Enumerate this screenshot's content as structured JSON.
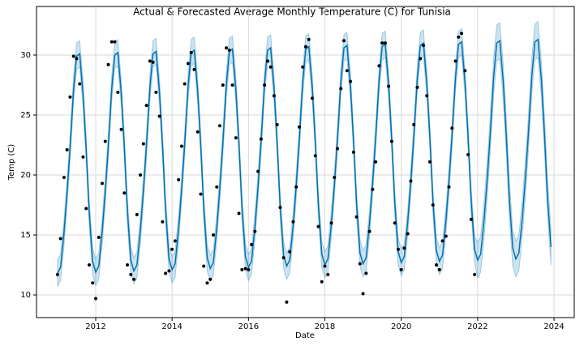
{
  "chart_data": {
    "type": "scatter",
    "title": "Actual & Forecasted Average Monthly Temperature (C) for Tunisia",
    "x_label": "Date",
    "y_label": "Temp (C)",
    "xlim": [
      2010.45,
      2024.53
    ],
    "ylim": [
      8.11,
      34.05
    ],
    "xticks": [
      2012,
      2014,
      2016,
      2018,
      2020,
      2022,
      2024
    ],
    "yticks": [
      10,
      15,
      20,
      25,
      30
    ],
    "grid": true,
    "series": [
      {
        "type": "scatter",
        "color": "#000000",
        "x": [
          2011.0,
          2011.08,
          2011.17,
          2011.25,
          2011.33,
          2011.42,
          2011.5,
          2011.58,
          2011.67,
          2011.75,
          2011.83,
          2011.92,
          2012.0,
          2012.08,
          2012.17,
          2012.25,
          2012.33,
          2012.42,
          2012.5,
          2012.58,
          2012.67,
          2012.75,
          2012.83,
          2012.92,
          2013.0,
          2013.08,
          2013.17,
          2013.25,
          2013.33,
          2013.42,
          2013.5,
          2013.58,
          2013.67,
          2013.75,
          2013.83,
          2013.92,
          2014.0,
          2014.08,
          2014.17,
          2014.25,
          2014.33,
          2014.42,
          2014.5,
          2014.58,
          2014.67,
          2014.75,
          2014.83,
          2014.92,
          2015.0,
          2015.08,
          2015.17,
          2015.25,
          2015.33,
          2015.42,
          2015.5,
          2015.58,
          2015.67,
          2015.75,
          2015.83,
          2015.92,
          2016.0,
          2016.08,
          2016.17,
          2016.25,
          2016.33,
          2016.42,
          2016.5,
          2016.58,
          2016.67,
          2016.75,
          2016.83,
          2016.92,
          2017.0,
          2017.08,
          2017.17,
          2017.25,
          2017.33,
          2017.42,
          2017.5,
          2017.58,
          2017.67,
          2017.75,
          2017.83,
          2017.92,
          2018.0,
          2018.08,
          2018.17,
          2018.25,
          2018.33,
          2018.42,
          2018.5,
          2018.58,
          2018.67,
          2018.75,
          2018.83,
          2018.92,
          2019.0,
          2019.08,
          2019.17,
          2019.25,
          2019.33,
          2019.42,
          2019.5,
          2019.58,
          2019.67,
          2019.75,
          2019.83,
          2019.92,
          2020.0,
          2020.08,
          2020.17,
          2020.25,
          2020.33,
          2020.42,
          2020.5,
          2020.58,
          2020.67,
          2020.75,
          2020.83,
          2020.92,
          2021.0,
          2021.08,
          2021.17,
          2021.25,
          2021.33,
          2021.42,
          2021.5,
          2021.58,
          2021.67,
          2021.75,
          2021.83,
          2021.92
        ],
        "values": [
          11.7,
          14.7,
          19.8,
          22.1,
          26.5,
          29.9,
          29.7,
          27.6,
          21.5,
          17.2,
          12.5,
          11.0,
          9.7,
          14.8,
          19.3,
          22.8,
          29.2,
          31.1,
          31.1,
          26.9,
          23.8,
          18.5,
          12.5,
          11.7,
          11.3,
          16.7,
          20.0,
          22.6,
          25.8,
          29.5,
          29.4,
          26.9,
          24.9,
          16.1,
          11.8,
          12.0,
          13.8,
          14.5,
          19.6,
          22.4,
          27.6,
          29.3,
          30.2,
          28.8,
          23.6,
          18.4,
          12.4,
          11.0,
          11.3,
          15.0,
          19.0,
          24.1,
          27.5,
          30.6,
          30.4,
          27.5,
          23.1,
          16.8,
          12.1,
          12.2,
          12.1,
          14.2,
          15.3,
          20.3,
          23.0,
          27.5,
          29.5,
          29.0,
          26.6,
          24.2,
          17.3,
          13.1,
          9.4,
          13.6,
          16.1,
          19.0,
          24.0,
          29.0,
          30.7,
          31.3,
          26.4,
          21.6,
          15.7,
          11.1,
          12.4,
          11.7,
          16.0,
          19.8,
          22.2,
          27.2,
          31.2,
          28.7,
          27.8,
          21.9,
          16.5,
          12.6,
          10.1,
          11.8,
          15.3,
          18.8,
          21.1,
          29.1,
          31.0,
          31.0,
          27.4,
          22.8,
          16.0,
          13.8,
          12.1,
          13.9,
          15.1,
          19.5,
          24.2,
          27.3,
          29.7,
          30.8,
          26.6,
          21.1,
          17.5,
          12.5,
          12.1,
          14.5,
          14.9,
          19.0,
          23.9,
          29.5,
          31.5,
          31.8,
          28.7,
          21.7,
          16.3,
          11.7
        ]
      },
      {
        "type": "line",
        "color": "#0072b2",
        "band_color": "#0072b2",
        "x": [
          2011.0,
          2011.08,
          2011.17,
          2011.25,
          2011.33,
          2011.42,
          2011.5,
          2011.58,
          2011.67,
          2011.75,
          2011.83,
          2011.92,
          2012.0,
          2012.08,
          2012.17,
          2012.25,
          2012.33,
          2012.42,
          2012.5,
          2012.58,
          2012.67,
          2012.75,
          2012.83,
          2012.92,
          2013.0,
          2013.08,
          2013.17,
          2013.25,
          2013.33,
          2013.42,
          2013.5,
          2013.58,
          2013.67,
          2013.75,
          2013.83,
          2013.92,
          2014.0,
          2014.08,
          2014.17,
          2014.25,
          2014.33,
          2014.42,
          2014.5,
          2014.58,
          2014.67,
          2014.75,
          2014.83,
          2014.92,
          2015.0,
          2015.08,
          2015.17,
          2015.25,
          2015.33,
          2015.42,
          2015.5,
          2015.58,
          2015.67,
          2015.75,
          2015.83,
          2015.92,
          2016.0,
          2016.08,
          2016.17,
          2016.25,
          2016.33,
          2016.42,
          2016.5,
          2016.58,
          2016.67,
          2016.75,
          2016.83,
          2016.92,
          2017.0,
          2017.08,
          2017.17,
          2017.25,
          2017.33,
          2017.42,
          2017.5,
          2017.58,
          2017.67,
          2017.75,
          2017.83,
          2017.92,
          2018.0,
          2018.08,
          2018.17,
          2018.25,
          2018.33,
          2018.42,
          2018.5,
          2018.58,
          2018.67,
          2018.75,
          2018.83,
          2018.92,
          2019.0,
          2019.08,
          2019.17,
          2019.25,
          2019.33,
          2019.42,
          2019.5,
          2019.58,
          2019.67,
          2019.75,
          2019.83,
          2019.92,
          2020.0,
          2020.08,
          2020.17,
          2020.25,
          2020.33,
          2020.42,
          2020.5,
          2020.58,
          2020.67,
          2020.75,
          2020.83,
          2020.92,
          2021.0,
          2021.08,
          2021.17,
          2021.25,
          2021.33,
          2021.42,
          2021.5,
          2021.58,
          2021.67,
          2021.75,
          2021.83,
          2021.92,
          2022.0,
          2022.08,
          2022.17,
          2022.25,
          2022.33,
          2022.42,
          2022.5,
          2022.58,
          2022.67,
          2022.75,
          2022.83,
          2022.92,
          2023.0,
          2023.08,
          2023.17,
          2023.25,
          2023.33,
          2023.42,
          2023.5,
          2023.58,
          2023.67,
          2023.75,
          2023.83,
          2023.92
        ],
        "values": [
          11.8,
          12.3,
          15.2,
          18.5,
          22.3,
          27.1,
          29.9,
          30.1,
          26.7,
          22.2,
          16.9,
          12.8,
          11.9,
          12.4,
          15.3,
          18.6,
          22.4,
          27.2,
          30.0,
          30.2,
          26.8,
          22.3,
          17.0,
          12.9,
          12.0,
          12.5,
          15.4,
          18.7,
          22.5,
          27.3,
          30.1,
          30.3,
          26.9,
          22.4,
          17.1,
          13.0,
          12.1,
          12.6,
          15.5,
          18.8,
          22.6,
          27.4,
          30.2,
          30.4,
          27.0,
          22.5,
          17.2,
          13.1,
          12.2,
          12.7,
          15.6,
          18.9,
          22.7,
          27.5,
          30.3,
          30.5,
          27.1,
          22.6,
          17.3,
          13.2,
          12.3,
          12.8,
          15.7,
          19.0,
          22.8,
          27.6,
          30.4,
          30.6,
          27.2,
          22.7,
          17.4,
          13.3,
          12.4,
          12.9,
          15.8,
          19.1,
          22.9,
          27.7,
          30.5,
          30.7,
          27.3,
          22.8,
          17.5,
          13.4,
          12.5,
          13.0,
          15.9,
          19.2,
          23.0,
          27.8,
          30.6,
          30.8,
          27.4,
          22.9,
          17.6,
          13.5,
          12.6,
          13.1,
          16.0,
          19.3,
          23.1,
          27.9,
          30.7,
          30.9,
          27.5,
          23.0,
          17.7,
          13.6,
          12.7,
          13.2,
          16.1,
          19.4,
          23.2,
          28.0,
          30.8,
          31.0,
          27.6,
          23.1,
          17.8,
          13.7,
          12.8,
          13.3,
          16.2,
          19.5,
          23.3,
          28.1,
          30.9,
          31.1,
          27.7,
          23.2,
          17.9,
          13.8,
          12.9,
          13.4,
          16.3,
          19.6,
          23.4,
          28.2,
          31.0,
          31.2,
          27.8,
          23.3,
          18.0,
          13.9,
          13.0,
          13.5,
          16.4,
          19.7,
          23.5,
          28.3,
          31.1,
          31.3,
          27.9,
          23.4,
          18.1,
          14.0
        ],
        "lower": [
          10.7,
          11.2,
          14.1,
          17.4,
          21.2,
          26.0,
          28.8,
          29.0,
          25.6,
          21.1,
          15.8,
          11.7,
          10.8,
          11.3,
          14.2,
          17.5,
          21.3,
          26.1,
          28.9,
          29.1,
          25.7,
          21.2,
          15.9,
          11.8,
          10.9,
          11.4,
          14.3,
          17.6,
          21.4,
          26.2,
          29.0,
          29.2,
          25.8,
          21.3,
          16.0,
          11.9,
          11.0,
          11.5,
          14.4,
          17.7,
          21.5,
          26.3,
          29.1,
          29.3,
          25.9,
          21.4,
          16.1,
          12.0,
          11.1,
          11.6,
          14.5,
          17.8,
          21.6,
          26.4,
          29.2,
          29.4,
          26.0,
          21.5,
          16.2,
          12.1,
          11.2,
          11.7,
          14.6,
          17.9,
          21.7,
          26.5,
          29.3,
          29.5,
          26.1,
          21.6,
          16.3,
          12.2,
          11.3,
          11.8,
          14.7,
          18.0,
          21.8,
          26.6,
          29.4,
          29.6,
          26.2,
          21.7,
          16.4,
          12.3,
          11.4,
          11.9,
          14.8,
          18.1,
          21.9,
          26.7,
          29.5,
          29.7,
          26.3,
          21.8,
          16.5,
          12.4,
          11.5,
          12.0,
          14.9,
          18.2,
          22.0,
          26.8,
          29.6,
          29.8,
          26.4,
          21.9,
          16.6,
          12.5,
          11.6,
          12.1,
          15.0,
          18.3,
          22.1,
          26.9,
          29.7,
          29.9,
          26.5,
          22.0,
          16.7,
          12.6,
          11.7,
          12.2,
          15.1,
          18.4,
          22.2,
          27.0,
          29.8,
          30.0,
          26.6,
          22.1,
          16.8,
          12.7,
          11.4,
          11.9,
          14.8,
          18.1,
          21.9,
          26.7,
          29.5,
          29.7,
          26.3,
          21.8,
          16.5,
          12.4,
          11.5,
          12.0,
          14.9,
          18.2,
          22.0,
          26.8,
          29.6,
          29.8,
          26.4,
          21.9,
          16.6,
          12.5
        ],
        "upper": [
          12.9,
          13.4,
          16.3,
          19.6,
          23.4,
          28.2,
          31.0,
          31.2,
          27.8,
          23.3,
          18.0,
          13.9,
          13.0,
          13.5,
          16.4,
          19.7,
          23.5,
          28.3,
          31.1,
          31.3,
          27.9,
          23.4,
          18.1,
          14.0,
          13.1,
          13.6,
          16.5,
          19.8,
          23.6,
          28.4,
          31.2,
          31.4,
          28.0,
          23.5,
          18.2,
          14.1,
          13.2,
          13.7,
          16.6,
          19.9,
          23.7,
          28.5,
          31.3,
          31.5,
          28.1,
          23.6,
          18.3,
          14.2,
          13.3,
          13.8,
          16.7,
          20.0,
          23.8,
          28.6,
          31.4,
          31.6,
          28.2,
          23.7,
          18.4,
          14.3,
          13.4,
          13.9,
          16.8,
          20.1,
          23.9,
          28.7,
          31.5,
          31.7,
          28.3,
          23.8,
          18.5,
          14.4,
          13.5,
          14.0,
          16.9,
          20.2,
          24.0,
          28.8,
          31.6,
          31.8,
          28.4,
          23.9,
          18.6,
          14.5,
          13.6,
          14.1,
          17.0,
          20.3,
          24.1,
          28.9,
          31.7,
          31.9,
          28.5,
          24.0,
          18.7,
          14.6,
          13.7,
          14.2,
          17.1,
          20.4,
          24.2,
          29.0,
          31.8,
          32.0,
          28.6,
          24.1,
          18.8,
          14.7,
          13.8,
          14.3,
          17.2,
          20.5,
          24.3,
          29.1,
          31.9,
          32.1,
          28.7,
          24.2,
          18.9,
          14.8,
          13.9,
          14.4,
          17.3,
          20.6,
          24.4,
          29.2,
          32.0,
          32.2,
          28.8,
          24.3,
          19.0,
          14.9,
          14.4,
          14.9,
          17.8,
          21.1,
          24.9,
          29.7,
          32.5,
          32.7,
          29.3,
          24.8,
          19.5,
          15.4,
          14.5,
          15.0,
          17.9,
          21.2,
          25.0,
          29.8,
          32.6,
          32.8,
          29.4,
          24.9,
          19.6,
          15.5
        ]
      }
    ]
  }
}
